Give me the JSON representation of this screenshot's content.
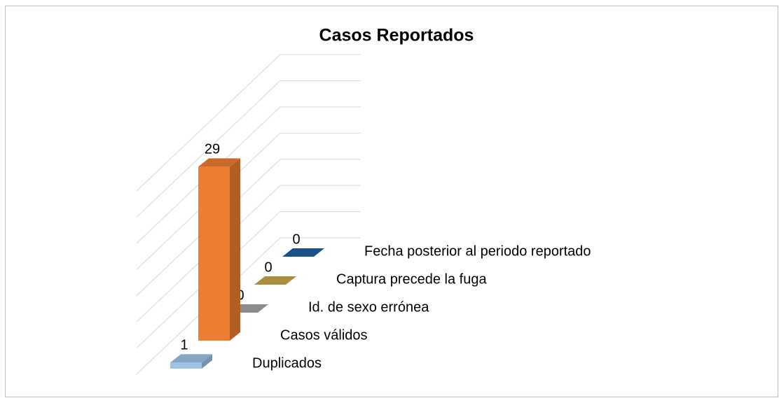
{
  "chart_data": {
    "type": "bar3d",
    "title": "Casos Reportados",
    "categories": [
      "Duplicados",
      "Casos válidos",
      "Id. de sexo errónea",
      "Captura precede la fuga",
      "Fecha posterior al periodo reportado"
    ],
    "series": [
      {
        "name": "Casos",
        "colors": [
          "#9dc3e6",
          "#ed7d31",
          "#a5a5a5",
          "#c9a84c",
          "#1f5fa0"
        ],
        "values": [
          1,
          29,
          0,
          0,
          0
        ]
      }
    ],
    "ylim": [
      0,
      35
    ],
    "yticks": [
      0,
      5,
      10,
      15,
      20,
      25,
      30,
      35
    ],
    "grid": true
  }
}
